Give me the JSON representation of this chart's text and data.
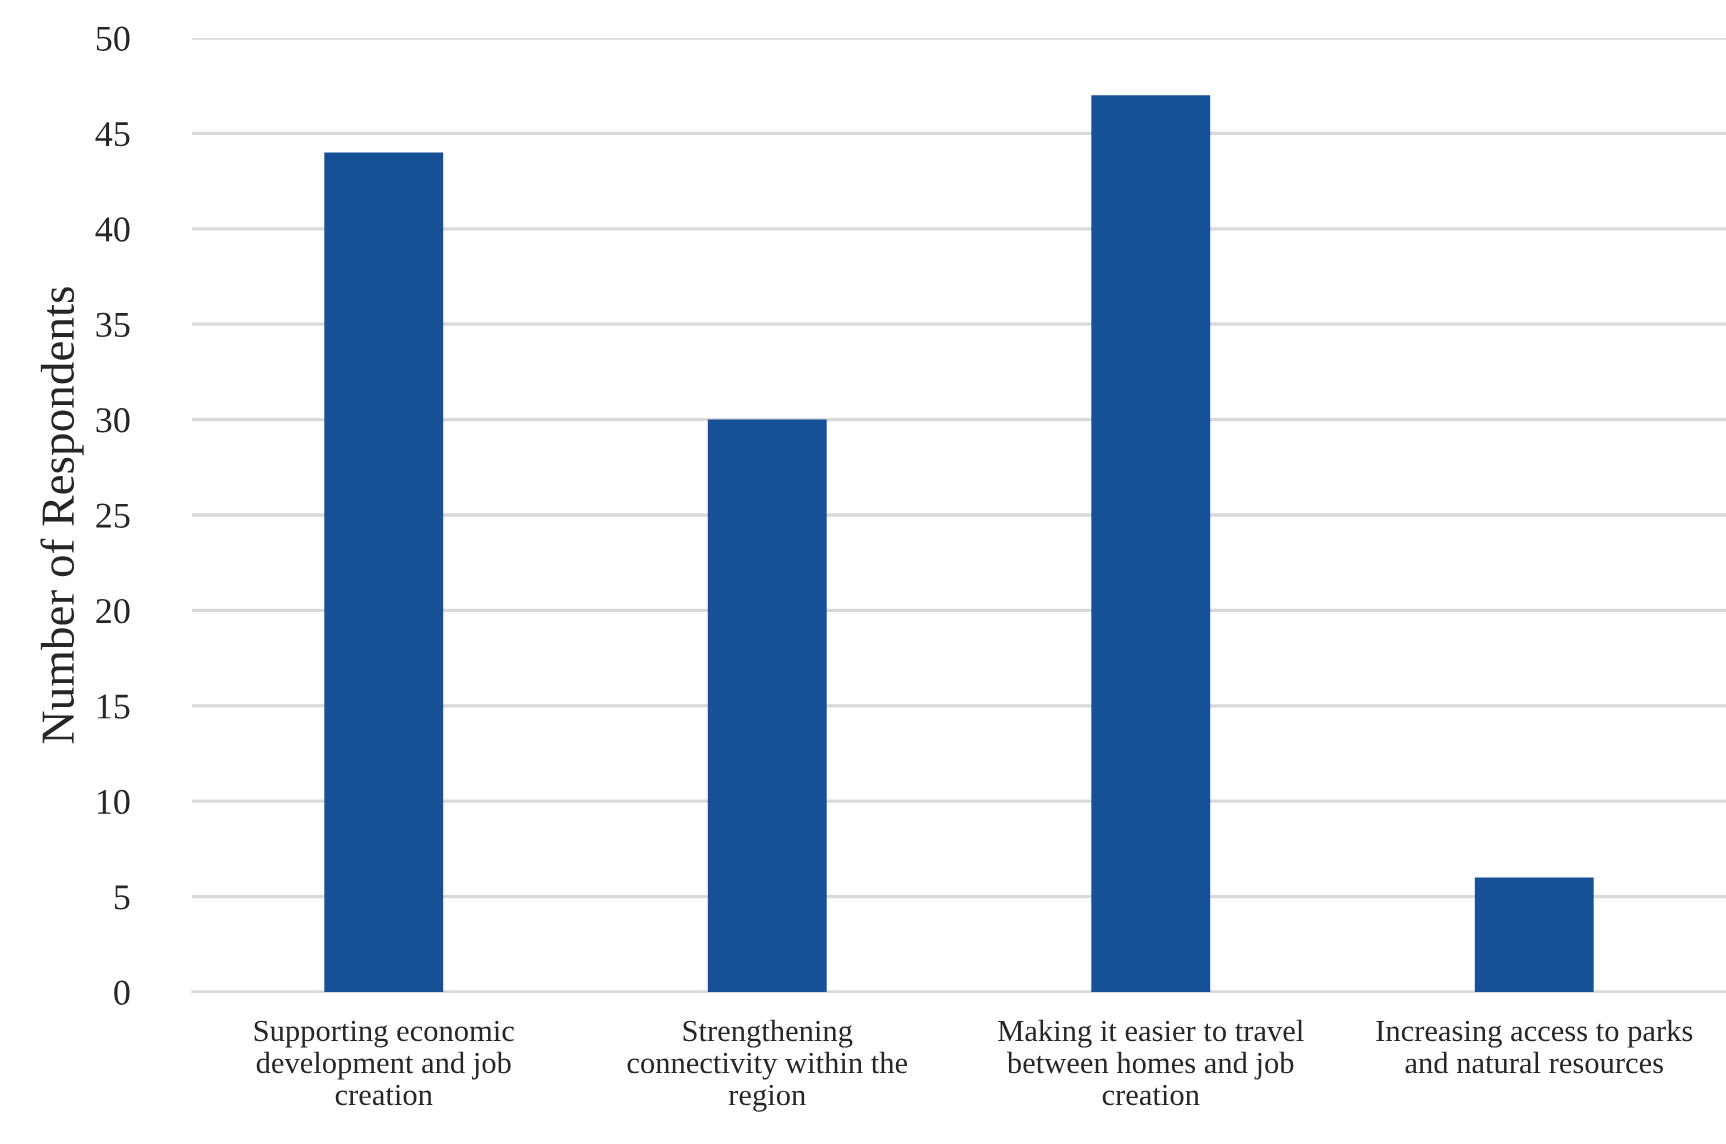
{
  "chart_data": {
    "type": "bar",
    "ylabel": "Number of Respondents",
    "categories": [
      "Supporting economic\ndevelopment and job\ncreation",
      "Strengthening\nconnectivity within the\nregion",
      "Making it easier to travel\nbetween homes and job\ncreation",
      "Increasing access to parks\nand natural resources"
    ],
    "values": [
      44,
      30,
      47,
      6
    ],
    "color": "#165197",
    "ylim": [
      0,
      50
    ],
    "yticks": [
      0,
      5,
      10,
      15,
      20,
      25,
      30,
      35,
      40,
      45,
      50
    ],
    "grid": "y"
  }
}
